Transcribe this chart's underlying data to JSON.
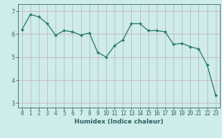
{
  "x": [
    0,
    1,
    2,
    3,
    4,
    5,
    6,
    7,
    8,
    9,
    10,
    11,
    12,
    13,
    14,
    15,
    16,
    17,
    18,
    19,
    20,
    21,
    22,
    23
  ],
  "y": [
    6.2,
    6.85,
    6.75,
    6.45,
    5.95,
    6.15,
    6.1,
    5.95,
    6.05,
    5.2,
    5.0,
    5.5,
    5.75,
    6.45,
    6.45,
    6.15,
    6.15,
    6.1,
    5.55,
    5.6,
    5.45,
    5.35,
    4.65,
    3.35
  ],
  "line_color": "#2e7d6e",
  "marker": "D",
  "marker_size": 2.0,
  "bg_color": "#cdecea",
  "grid_color_v": "#c8a8a8",
  "grid_color_h": "#c8a8a8",
  "xlabel": "Humidex (Indice chaleur)",
  "ylim": [
    2.8,
    7.3
  ],
  "xlim": [
    -0.5,
    23.5
  ],
  "yticks": [
    3,
    4,
    5,
    6,
    7
  ],
  "xticks": [
    0,
    1,
    2,
    3,
    4,
    5,
    6,
    7,
    8,
    9,
    10,
    11,
    12,
    13,
    14,
    15,
    16,
    17,
    18,
    19,
    20,
    21,
    22,
    23
  ],
  "tick_color": "#2e6060",
  "label_fontsize": 6.5,
  "tick_fontsize": 5.5,
  "linewidth": 1.0
}
